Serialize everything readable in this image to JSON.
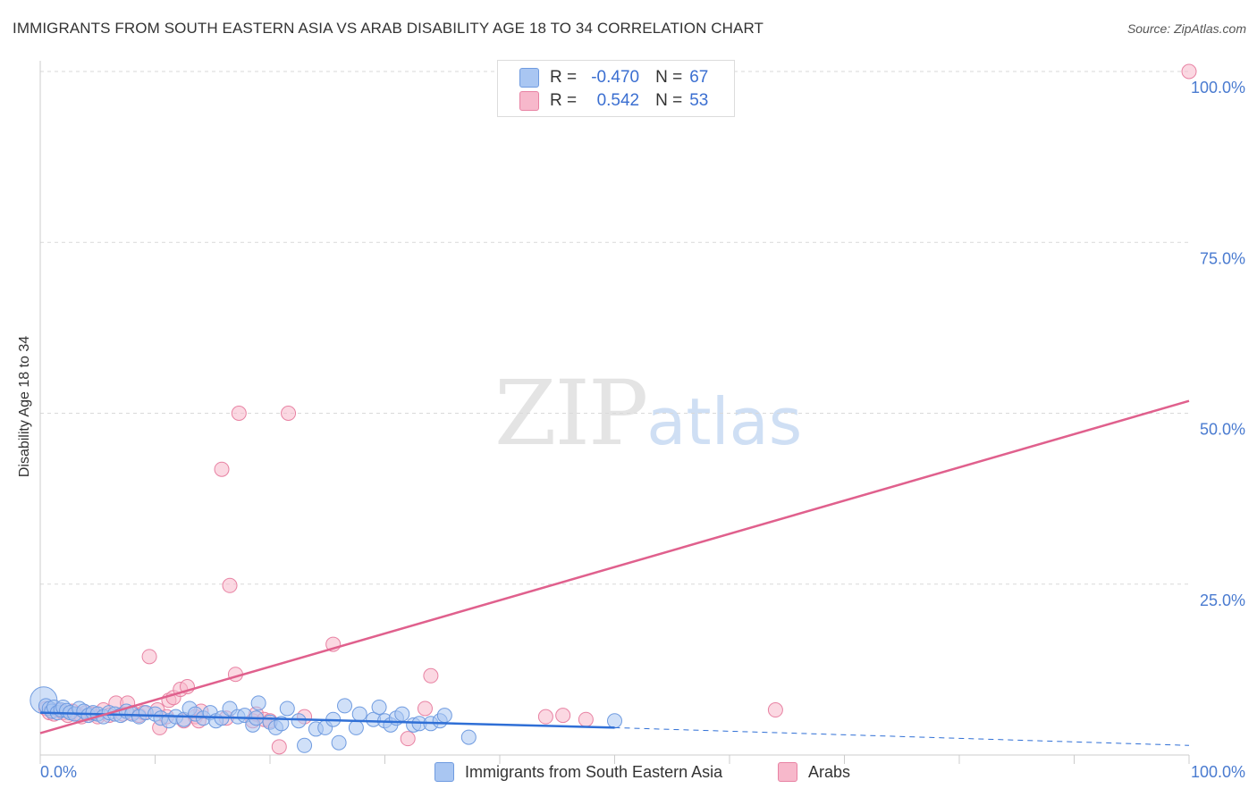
{
  "header": {
    "title": "IMMIGRANTS FROM SOUTH EASTERN ASIA VS ARAB DISABILITY AGE 18 TO 34 CORRELATION CHART",
    "source": "Source: ZipAtlas.com"
  },
  "watermark": {
    "zip": "ZIP",
    "atlas": "atlas"
  },
  "colors": {
    "blue_fill": "#a9c6f2",
    "blue_stroke": "#6f9be0",
    "blue_line": "#2f6fd6",
    "pink_fill": "#f7b8cb",
    "pink_stroke": "#e882a3",
    "pink_line": "#e0608d",
    "tick_label": "#4a7bd0",
    "grid": "#d9d9d9"
  },
  "legend_top": {
    "rows": [
      {
        "r_label": "R =",
        "r_value": "-0.470",
        "n_label": "N =",
        "n_value": "67",
        "series": "blue"
      },
      {
        "r_label": "R =",
        "r_value": "0.542",
        "n_label": "N =",
        "n_value": "53",
        "series": "pink"
      }
    ]
  },
  "chart_data": {
    "type": "scatter",
    "title": "IMMIGRANTS FROM SOUTH EASTERN ASIA VS ARAB DISABILITY AGE 18 TO 34 CORRELATION CHART",
    "xlabel": "",
    "ylabel": "Disability Age 18 to 34",
    "xlim": [
      0,
      100
    ],
    "ylim": [
      0,
      100
    ],
    "x_tick_labels": [
      "0.0%",
      "100.0%"
    ],
    "y_tick_labels": [
      "25.0%",
      "50.0%",
      "75.0%",
      "100.0%"
    ],
    "y_ticks": [
      25,
      50,
      75,
      100
    ],
    "series": [
      {
        "name": "Immigrants from South Eastern Asia",
        "color": "blue",
        "trend": {
          "x": [
            0,
            50
          ],
          "y": [
            6.2,
            4.0
          ],
          "dashed_extension": {
            "x": [
              50,
              100
            ],
            "y": [
              4.0,
              1.4
            ]
          }
        },
        "points": [
          {
            "x": 0.3,
            "y": 8.0,
            "big": true
          },
          {
            "x": 0.5,
            "y": 7.2
          },
          {
            "x": 0.8,
            "y": 6.8
          },
          {
            "x": 1.0,
            "y": 6.4
          },
          {
            "x": 1.2,
            "y": 7.0
          },
          {
            "x": 1.5,
            "y": 6.2
          },
          {
            "x": 1.8,
            "y": 6.6
          },
          {
            "x": 2.0,
            "y": 7.0
          },
          {
            "x": 2.3,
            "y": 6.5
          },
          {
            "x": 2.6,
            "y": 6.2
          },
          {
            "x": 3.0,
            "y": 6.0
          },
          {
            "x": 3.4,
            "y": 6.8
          },
          {
            "x": 3.8,
            "y": 6.4
          },
          {
            "x": 4.2,
            "y": 5.8
          },
          {
            "x": 4.6,
            "y": 6.2
          },
          {
            "x": 5.0,
            "y": 6.0
          },
          {
            "x": 5.5,
            "y": 5.6
          },
          {
            "x": 6.0,
            "y": 6.2
          },
          {
            "x": 6.5,
            "y": 6.0
          },
          {
            "x": 7.0,
            "y": 5.8
          },
          {
            "x": 7.5,
            "y": 6.4
          },
          {
            "x": 8.0,
            "y": 6.0
          },
          {
            "x": 8.6,
            "y": 5.6
          },
          {
            "x": 9.2,
            "y": 6.2
          },
          {
            "x": 10.0,
            "y": 6.0
          },
          {
            "x": 10.5,
            "y": 5.4
          },
          {
            "x": 11.2,
            "y": 5.0
          },
          {
            "x": 11.8,
            "y": 5.6
          },
          {
            "x": 12.5,
            "y": 5.2
          },
          {
            "x": 13.0,
            "y": 6.8
          },
          {
            "x": 13.5,
            "y": 6.0
          },
          {
            "x": 14.2,
            "y": 5.4
          },
          {
            "x": 14.8,
            "y": 6.2
          },
          {
            "x": 15.3,
            "y": 5.0
          },
          {
            "x": 15.8,
            "y": 5.4
          },
          {
            "x": 16.5,
            "y": 6.8
          },
          {
            "x": 17.2,
            "y": 5.6
          },
          {
            "x": 17.8,
            "y": 5.8
          },
          {
            "x": 18.5,
            "y": 4.4
          },
          {
            "x": 18.8,
            "y": 5.4
          },
          {
            "x": 19.0,
            "y": 7.6
          },
          {
            "x": 20.0,
            "y": 4.8
          },
          {
            "x": 20.5,
            "y": 4.0
          },
          {
            "x": 21.0,
            "y": 4.6
          },
          {
            "x": 21.5,
            "y": 6.8
          },
          {
            "x": 22.5,
            "y": 5.0
          },
          {
            "x": 23.0,
            "y": 1.4
          },
          {
            "x": 24.0,
            "y": 3.8
          },
          {
            "x": 24.8,
            "y": 4.0
          },
          {
            "x": 25.5,
            "y": 5.2
          },
          {
            "x": 26.0,
            "y": 1.8
          },
          {
            "x": 26.5,
            "y": 7.2
          },
          {
            "x": 27.5,
            "y": 4.0
          },
          {
            "x": 27.8,
            "y": 6.0
          },
          {
            "x": 29.0,
            "y": 5.2
          },
          {
            "x": 29.5,
            "y": 7.0
          },
          {
            "x": 30.0,
            "y": 5.0
          },
          {
            "x": 30.5,
            "y": 4.4
          },
          {
            "x": 31.0,
            "y": 5.4
          },
          {
            "x": 31.5,
            "y": 6.0
          },
          {
            "x": 32.5,
            "y": 4.4
          },
          {
            "x": 33.0,
            "y": 4.6
          },
          {
            "x": 34.0,
            "y": 4.6
          },
          {
            "x": 34.8,
            "y": 5.0
          },
          {
            "x": 35.2,
            "y": 5.8
          },
          {
            "x": 37.3,
            "y": 2.6
          },
          {
            "x": 50.0,
            "y": 5.0
          }
        ]
      },
      {
        "name": "Arabs",
        "color": "pink",
        "trend": {
          "x": [
            0,
            100
          ],
          "y": [
            3.2,
            51.8
          ]
        },
        "points": [
          {
            "x": 0.5,
            "y": 6.8
          },
          {
            "x": 0.8,
            "y": 6.2
          },
          {
            "x": 1.2,
            "y": 6.0
          },
          {
            "x": 1.6,
            "y": 6.6
          },
          {
            "x": 2.0,
            "y": 6.2
          },
          {
            "x": 2.4,
            "y": 5.8
          },
          {
            "x": 2.8,
            "y": 6.4
          },
          {
            "x": 3.2,
            "y": 6.0
          },
          {
            "x": 3.6,
            "y": 5.6
          },
          {
            "x": 4.0,
            "y": 6.2
          },
          {
            "x": 4.5,
            "y": 6.0
          },
          {
            "x": 5.0,
            "y": 5.6
          },
          {
            "x": 5.5,
            "y": 6.6
          },
          {
            "x": 6.0,
            "y": 5.8
          },
          {
            "x": 6.6,
            "y": 7.6
          },
          {
            "x": 7.2,
            "y": 6.0
          },
          {
            "x": 7.6,
            "y": 7.6
          },
          {
            "x": 8.0,
            "y": 6.2
          },
          {
            "x": 8.6,
            "y": 5.8
          },
          {
            "x": 9.0,
            "y": 6.2
          },
          {
            "x": 9.5,
            "y": 14.4
          },
          {
            "x": 10.2,
            "y": 6.6
          },
          {
            "x": 10.4,
            "y": 4.0
          },
          {
            "x": 11.0,
            "y": 5.6
          },
          {
            "x": 11.2,
            "y": 8.0
          },
          {
            "x": 11.6,
            "y": 8.4
          },
          {
            "x": 12.2,
            "y": 9.6
          },
          {
            "x": 12.5,
            "y": 5.0
          },
          {
            "x": 12.8,
            "y": 10.0
          },
          {
            "x": 13.5,
            "y": 5.6
          },
          {
            "x": 13.8,
            "y": 5.0
          },
          {
            "x": 14.0,
            "y": 6.4
          },
          {
            "x": 15.8,
            "y": 41.8
          },
          {
            "x": 16.2,
            "y": 5.4
          },
          {
            "x": 16.5,
            "y": 24.8
          },
          {
            "x": 17.0,
            "y": 11.8
          },
          {
            "x": 17.3,
            "y": 50.0
          },
          {
            "x": 18.5,
            "y": 5.0
          },
          {
            "x": 18.8,
            "y": 6.0
          },
          {
            "x": 19.5,
            "y": 5.2
          },
          {
            "x": 20.0,
            "y": 5.0
          },
          {
            "x": 20.8,
            "y": 1.2
          },
          {
            "x": 21.6,
            "y": 50.0
          },
          {
            "x": 23.0,
            "y": 5.6
          },
          {
            "x": 25.5,
            "y": 16.2
          },
          {
            "x": 32.0,
            "y": 2.4
          },
          {
            "x": 33.5,
            "y": 6.8
          },
          {
            "x": 34.0,
            "y": 11.6
          },
          {
            "x": 44.0,
            "y": 5.6
          },
          {
            "x": 45.5,
            "y": 5.8
          },
          {
            "x": 47.5,
            "y": 5.2
          },
          {
            "x": 64.0,
            "y": 6.6
          },
          {
            "x": 100.0,
            "y": 100.0
          }
        ]
      }
    ]
  },
  "bottom_legend": {
    "items": [
      {
        "label": "Immigrants from South Eastern Asia",
        "series": "blue"
      },
      {
        "label": "Arabs",
        "series": "pink"
      }
    ]
  }
}
